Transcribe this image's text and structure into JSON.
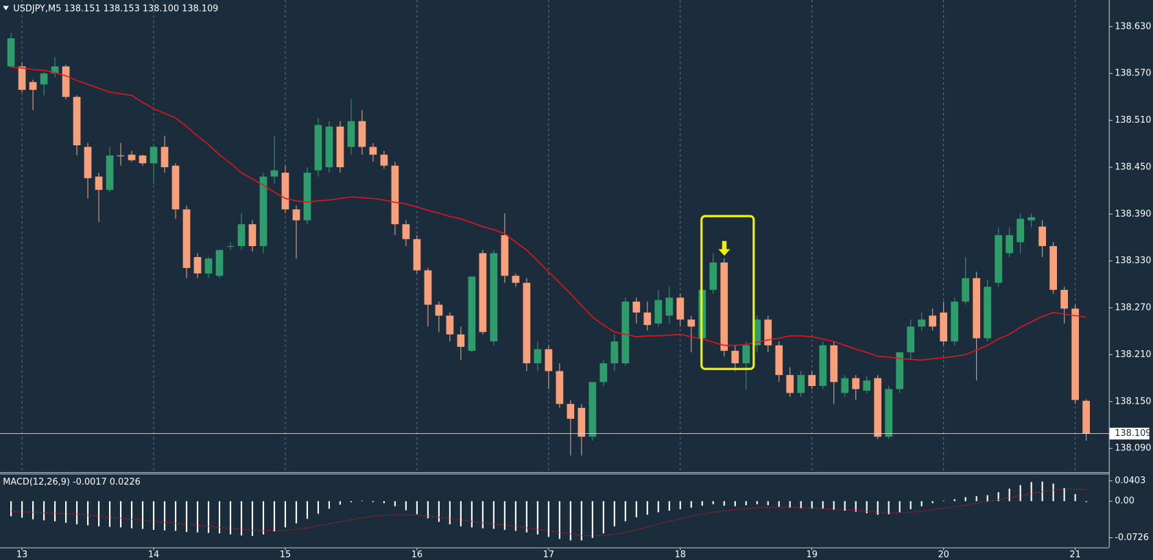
{
  "chart_data": [
    {
      "type": "candlestick",
      "title": "USDJPY,M5  138.151 138.153 138.100 138.109",
      "categories": [
        null,
        "13",
        null,
        null,
        null,
        null,
        null,
        null,
        null,
        null,
        null,
        null,
        null,
        "14",
        null,
        null,
        null,
        null,
        null,
        null,
        null,
        null,
        null,
        null,
        null,
        "15",
        null,
        null,
        null,
        null,
        null,
        null,
        null,
        null,
        null,
        null,
        null,
        "16",
        null,
        null,
        null,
        null,
        null,
        null,
        null,
        null,
        null,
        null,
        null,
        "17",
        null,
        null,
        null,
        null,
        null,
        null,
        null,
        null,
        null,
        null,
        null,
        "18",
        null,
        null,
        null,
        null,
        null,
        null,
        null,
        null,
        null,
        null,
        null,
        "19",
        null,
        null,
        null,
        null,
        null,
        null,
        null,
        null,
        null,
        null,
        null,
        "20",
        null,
        null,
        null,
        null,
        null,
        null,
        null,
        null,
        null,
        null,
        null,
        "21",
        null
      ],
      "open": [
        138.579,
        138.579,
        138.559,
        138.556,
        138.57,
        138.579,
        138.54,
        138.476,
        138.438,
        138.421,
        138.465,
        138.466,
        138.465,
        138.455,
        138.476,
        138.452,
        138.396,
        138.335,
        138.314,
        138.311,
        138.349,
        138.349,
        138.377,
        138.349,
        138.438,
        138.443,
        138.396,
        138.382,
        138.446,
        138.45,
        138.502,
        138.476,
        138.509,
        138.476,
        138.466,
        138.452,
        138.377,
        138.358,
        138.318,
        138.274,
        138.26,
        138.236,
        138.215,
        138.34,
        138.227,
        138.363,
        138.311,
        138.302,
        138.199,
        138.217,
        138.189,
        138.147,
        138.142,
        138.105,
        138.175,
        138.199,
        138.199,
        138.278,
        138.264,
        138.25,
        138.26,
        138.283,
        138.255,
        138.231,
        138.293,
        138.328,
        138.215,
        138.199,
        138.222,
        138.255,
        138.222,
        138.184,
        138.161,
        138.184,
        138.17,
        138.222,
        138.161,
        138.18,
        138.164,
        138.18,
        138.105,
        138.166,
        138.213,
        138.246,
        138.26,
        138.264,
        138.227,
        138.278,
        138.308,
        138.231,
        138.302,
        138.34,
        138.354,
        138.382,
        138.374,
        138.349,
        138.293,
        138.269,
        138.151
      ],
      "high": [
        138.622,
        138.584,
        138.562,
        138.572,
        138.591,
        138.581,
        138.542,
        138.481,
        138.443,
        138.476,
        138.481,
        138.471,
        138.466,
        138.478,
        138.49,
        138.455,
        138.401,
        138.34,
        138.335,
        138.344,
        138.354,
        138.391,
        138.382,
        138.443,
        138.49,
        138.452,
        138.401,
        138.45,
        138.513,
        138.509,
        138.509,
        138.537,
        138.523,
        138.481,
        138.471,
        138.457,
        138.382,
        138.363,
        138.321,
        138.278,
        138.264,
        138.246,
        138.31,
        138.344,
        138.344,
        138.391,
        138.314,
        138.308,
        138.227,
        138.222,
        138.199,
        138.152,
        138.147,
        138.175,
        138.203,
        138.236,
        138.283,
        138.283,
        138.278,
        138.293,
        138.297,
        138.288,
        138.26,
        138.297,
        138.34,
        138.333,
        138.222,
        138.227,
        138.26,
        138.26,
        138.227,
        138.194,
        138.189,
        138.189,
        138.227,
        138.227,
        138.184,
        138.184,
        138.183,
        138.184,
        138.17,
        138.213,
        138.255,
        138.264,
        138.269,
        138.278,
        138.283,
        138.335,
        138.316,
        138.306,
        138.373,
        138.373,
        138.391,
        138.391,
        138.382,
        138.354,
        138.297,
        138.274,
        138.153
      ],
      "low": [
        138.577,
        138.546,
        138.523,
        138.542,
        138.565,
        138.537,
        138.465,
        138.41,
        138.38,
        138.418,
        138.452,
        138.457,
        138.452,
        138.429,
        138.443,
        138.384,
        138.308,
        138.308,
        138.308,
        138.308,
        138.344,
        138.344,
        138.342,
        138.34,
        138.429,
        138.391,
        138.333,
        138.377,
        138.438,
        138.443,
        138.443,
        138.466,
        138.466,
        138.457,
        138.448,
        138.363,
        138.349,
        138.314,
        138.246,
        138.239,
        138.227,
        138.203,
        138.213,
        138.236,
        138.222,
        138.302,
        138.297,
        138.189,
        138.189,
        138.166,
        138.142,
        138.081,
        138.081,
        138.1,
        138.17,
        138.189,
        138.196,
        138.25,
        138.241,
        138.246,
        138.25,
        138.246,
        138.213,
        138.222,
        138.288,
        138.208,
        138.189,
        138.166,
        138.213,
        138.213,
        138.175,
        138.156,
        138.156,
        138.166,
        138.166,
        138.147,
        138.156,
        138.152,
        138.161,
        138.102,
        138.102,
        138.161,
        138.203,
        138.241,
        138.241,
        138.222,
        138.222,
        138.274,
        138.177,
        138.227,
        138.297,
        138.335,
        138.34,
        138.373,
        138.335,
        138.288,
        138.25,
        138.147,
        138.1
      ],
      "close": [
        138.615,
        138.549,
        138.549,
        138.57,
        138.579,
        138.54,
        138.478,
        138.436,
        138.421,
        138.465,
        138.464,
        138.459,
        138.455,
        138.476,
        138.45,
        138.396,
        138.321,
        138.314,
        138.333,
        138.344,
        138.349,
        138.377,
        138.349,
        138.438,
        138.446,
        138.396,
        138.382,
        138.443,
        138.504,
        138.502,
        138.45,
        138.509,
        138.476,
        138.466,
        138.452,
        138.377,
        138.358,
        138.318,
        138.274,
        138.26,
        138.236,
        138.22,
        138.31,
        138.239,
        138.34,
        138.311,
        138.302,
        138.199,
        138.217,
        138.189,
        138.147,
        138.128,
        138.105,
        138.175,
        138.199,
        138.227,
        138.278,
        138.264,
        138.248,
        138.28,
        138.283,
        138.255,
        138.246,
        138.293,
        138.328,
        138.215,
        138.199,
        138.222,
        138.255,
        138.222,
        138.184,
        138.161,
        138.184,
        138.17,
        138.222,
        138.175,
        138.18,
        138.166,
        138.177,
        138.105,
        138.166,
        138.213,
        138.246,
        138.255,
        138.246,
        138.227,
        138.278,
        138.308,
        138.231,
        138.297,
        138.363,
        138.363,
        138.384,
        138.386,
        138.349,
        138.293,
        138.269,
        138.152,
        138.109
      ],
      "up_color": "#2f9d6b",
      "down_color": "#f7a07c",
      "ma": {
        "color": "#e3161c",
        "values": [
          138.578,
          138.577,
          138.575,
          138.574,
          138.571,
          138.567,
          138.561,
          138.556,
          138.551,
          138.546,
          138.544,
          138.542,
          138.533,
          138.525,
          138.519,
          138.513,
          138.502,
          138.49,
          138.479,
          138.466,
          138.455,
          138.443,
          138.435,
          138.427,
          138.418,
          138.41,
          138.407,
          138.405,
          138.407,
          138.408,
          138.41,
          138.412,
          138.411,
          138.41,
          138.408,
          138.405,
          138.403,
          138.399,
          138.395,
          138.391,
          138.387,
          138.384,
          138.379,
          138.374,
          138.37,
          138.365,
          138.354,
          138.344,
          138.33,
          138.316,
          138.302,
          138.288,
          138.273,
          138.258,
          138.248,
          138.239,
          138.236,
          138.233,
          138.234,
          138.234,
          138.235,
          138.236,
          138.233,
          138.23,
          138.226,
          138.222,
          138.222,
          138.223,
          138.226,
          138.229,
          138.231,
          138.234,
          138.234,
          138.233,
          138.23,
          138.227,
          138.222,
          138.217,
          138.213,
          138.208,
          138.207,
          138.205,
          138.204,
          138.203,
          138.205,
          138.206,
          138.208,
          138.21,
          138.216,
          138.222,
          138.23,
          138.236,
          138.245,
          138.252,
          138.259,
          138.264,
          138.262,
          138.26,
          138.258
        ]
      },
      "current_price": 138.109,
      "ylim": [
        138.062,
        138.664
      ],
      "yticks": [
        {
          "value": 138.63,
          "label": "138.630"
        },
        {
          "value": 138.57,
          "label": "138.570"
        },
        {
          "value": 138.51,
          "label": "138.510"
        },
        {
          "value": 138.45,
          "label": "138.450"
        },
        {
          "value": 138.39,
          "label": "138.390"
        },
        {
          "value": 138.33,
          "label": "138.330"
        },
        {
          "value": 138.27,
          "label": "138.270"
        },
        {
          "value": 138.21,
          "label": "138.210"
        },
        {
          "value": 138.15,
          "label": "138.150"
        },
        {
          "value": 138.09,
          "label": "138.090"
        }
      ],
      "grid": true
    },
    {
      "type": "macd",
      "title": "MACD(12,26,9) -0.0017 0.0226",
      "histogram": {
        "color": "#ffffff",
        "values": [
          -0.03,
          -0.033,
          -0.036,
          -0.038,
          -0.04,
          -0.043,
          -0.046,
          -0.048,
          -0.05,
          -0.051,
          -0.052,
          -0.054,
          -0.055,
          -0.057,
          -0.058,
          -0.059,
          -0.061,
          -0.062,
          -0.063,
          -0.064,
          -0.066,
          -0.068,
          -0.069,
          -0.066,
          -0.06,
          -0.052,
          -0.044,
          -0.035,
          -0.025,
          -0.015,
          -0.007,
          -0.002,
          0.001,
          -0.002,
          -0.004,
          -0.01,
          -0.018,
          -0.026,
          -0.034,
          -0.041,
          -0.046,
          -0.05,
          -0.052,
          -0.054,
          -0.055,
          -0.057,
          -0.059,
          -0.062,
          -0.066,
          -0.071,
          -0.075,
          -0.078,
          -0.078,
          -0.073,
          -0.064,
          -0.05,
          -0.04,
          -0.032,
          -0.027,
          -0.022,
          -0.019,
          -0.016,
          -0.013,
          -0.009,
          -0.006,
          -0.009,
          -0.01,
          -0.008,
          -0.006,
          -0.008,
          -0.011,
          -0.013,
          -0.014,
          -0.015,
          -0.015,
          -0.017,
          -0.019,
          -0.021,
          -0.024,
          -0.027,
          -0.026,
          -0.022,
          -0.016,
          -0.01,
          -0.004,
          0.001,
          0.004,
          0.008,
          0.01,
          0.012,
          0.018,
          0.025,
          0.032,
          0.038,
          0.039,
          0.035,
          0.026,
          0.014,
          -0.0017
        ]
      },
      "signal": {
        "color": "#e3161c",
        "values": [
          -0.02,
          -0.021,
          -0.022,
          -0.023,
          -0.024,
          -0.025,
          -0.026,
          -0.028,
          -0.03,
          -0.032,
          -0.034,
          -0.036,
          -0.038,
          -0.04,
          -0.042,
          -0.044,
          -0.046,
          -0.048,
          -0.05,
          -0.052,
          -0.054,
          -0.056,
          -0.058,
          -0.059,
          -0.059,
          -0.058,
          -0.056,
          -0.053,
          -0.049,
          -0.045,
          -0.041,
          -0.037,
          -0.033,
          -0.03,
          -0.028,
          -0.027,
          -0.027,
          -0.028,
          -0.03,
          -0.032,
          -0.034,
          -0.037,
          -0.04,
          -0.043,
          -0.045,
          -0.047,
          -0.05,
          -0.053,
          -0.056,
          -0.059,
          -0.062,
          -0.065,
          -0.068,
          -0.069,
          -0.068,
          -0.066,
          -0.062,
          -0.057,
          -0.051,
          -0.045,
          -0.04,
          -0.035,
          -0.03,
          -0.026,
          -0.022,
          -0.019,
          -0.017,
          -0.015,
          -0.013,
          -0.012,
          -0.012,
          -0.012,
          -0.013,
          -0.014,
          -0.015,
          -0.016,
          -0.017,
          -0.018,
          -0.02,
          -0.022,
          -0.023,
          -0.023,
          -0.022,
          -0.02,
          -0.017,
          -0.014,
          -0.011,
          -0.008,
          -0.004,
          -0.001,
          0.003,
          0.007,
          0.011,
          0.015,
          0.019,
          0.022,
          0.024,
          0.024,
          0.0226
        ]
      },
      "ylim": [
        -0.0876,
        0.0496
      ],
      "yticks": [
        0.0403,
        {
          "value": 0,
          "label": "0.00"
        },
        -0.0726
      ]
    }
  ]
}
